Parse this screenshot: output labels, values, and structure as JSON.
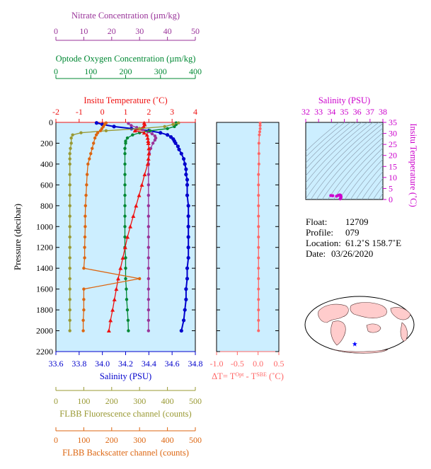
{
  "colors": {
    "nitrate": "#993399",
    "oxygen": "#008833",
    "temperature": "#ee1111",
    "salinity": "#0000cc",
    "fluorescence": "#999933",
    "backscatter": "#dd6611",
    "delta_t": "#ff6666",
    "ts": "#cc00cc",
    "panel_bg": "#cceeff"
  },
  "chart_data": [
    {
      "type": "line",
      "panel": "profiles",
      "ylabel": "Pressure (decibar)",
      "ylim": [
        2200,
        0
      ],
      "yticks": [
        "0",
        "200",
        "400",
        "600",
        "800",
        "1000",
        "1200",
        "1400",
        "1600",
        "1800",
        "2000",
        "2200"
      ],
      "axes": {
        "nitrate": {
          "label": "Nitrate Concentration (µm/kg)",
          "range": [
            0,
            50
          ],
          "ticks": [
            "0",
            "10",
            "20",
            "30",
            "40",
            "50"
          ]
        },
        "oxygen": {
          "label": "Optode Oxygen Concentration (µm/kg)",
          "range": [
            0,
            400
          ],
          "ticks": [
            "0",
            "100",
            "200",
            "300",
            "400"
          ]
        },
        "temperature": {
          "label": "Insitu Temperature (˚C)",
          "range": [
            -2,
            4
          ],
          "ticks": [
            "-2",
            "-1",
            "0",
            "1",
            "2",
            "3",
            "4"
          ]
        },
        "salinity": {
          "label": "Salinity (PSU)",
          "range": [
            33.6,
            34.8
          ],
          "ticks": [
            "33.6",
            "33.8",
            "34.0",
            "34.2",
            "34.4",
            "34.6",
            "34.8"
          ]
        },
        "fluorescence": {
          "label": "FLBB Fluorescence channel (counts)",
          "range": [
            0,
            500
          ],
          "ticks": [
            "0",
            "100",
            "200",
            "300",
            "400",
            "500"
          ]
        },
        "backscatter": {
          "label": "FLBB Backscatter channel (counts)",
          "range": [
            0,
            500
          ],
          "ticks": [
            "0",
            "100",
            "200",
            "300",
            "400",
            "500"
          ]
        }
      },
      "series": [
        {
          "key": "salinity",
          "marker": "circle",
          "pressure": [
            5,
            20,
            40,
            60,
            80,
            100,
            120,
            140,
            160,
            180,
            200,
            230,
            260,
            300,
            350,
            400,
            450,
            500,
            550,
            600,
            700,
            800,
            900,
            1000,
            1100,
            1200,
            1300,
            1400,
            1500,
            1600,
            1700,
            1800,
            1900,
            2000
          ],
          "values": [
            33.95,
            34.0,
            34.1,
            34.25,
            34.4,
            34.5,
            34.56,
            34.59,
            34.61,
            34.62,
            34.63,
            34.65,
            34.66,
            34.68,
            34.7,
            34.71,
            34.72,
            34.72,
            34.73,
            34.73,
            34.73,
            34.74,
            34.74,
            34.74,
            34.74,
            34.74,
            34.74,
            34.73,
            34.73,
            34.72,
            34.72,
            34.71,
            34.7,
            34.68
          ]
        },
        {
          "key": "nitrate",
          "marker": "circle",
          "pressure": [
            10,
            30,
            50,
            70,
            90,
            110,
            130,
            150,
            170,
            200,
            250,
            300,
            400,
            500,
            600,
            700,
            800,
            900,
            1000,
            1100,
            1200,
            1300,
            1400,
            1500,
            1600,
            1700,
            1800,
            1900,
            2000
          ],
          "values": [
            26,
            27,
            29,
            31,
            33,
            34.5,
            35.5,
            35.8,
            35.5,
            34.8,
            34.0,
            33.5,
            33.2,
            33.2,
            33.2,
            33.2,
            33.2,
            33.2,
            33.2,
            33.2,
            33.2,
            33.2,
            33.2,
            33.2,
            33.2,
            33.2,
            33.2,
            33.2,
            33.2
          ]
        },
        {
          "key": "oxygen",
          "marker": "circle",
          "pressure": [
            5,
            20,
            40,
            60,
            80,
            100,
            120,
            150,
            180,
            200,
            250,
            300,
            400,
            500,
            600,
            700,
            800,
            900,
            1000,
            1100,
            1200,
            1300,
            1400,
            1500,
            1600,
            1700,
            1800,
            1900,
            2000
          ],
          "values": [
            345,
            345,
            340,
            320,
            270,
            240,
            220,
            205,
            200,
            200,
            198,
            198,
            198,
            198,
            198,
            198,
            198,
            198,
            198,
            198,
            198,
            200,
            200,
            200,
            202,
            203,
            205,
            207,
            208
          ]
        },
        {
          "key": "temperature",
          "marker": "triangle",
          "pressure": [
            5,
            20,
            40,
            60,
            80,
            100,
            120,
            150,
            180,
            200,
            250,
            300,
            350,
            400,
            500,
            600,
            700,
            800,
            900,
            1000,
            1100,
            1200,
            1300,
            1400,
            1500,
            1600,
            1700,
            1800,
            1900,
            2000
          ],
          "values": [
            1.8,
            1.82,
            1.78,
            1.6,
            1.4,
            1.8,
            1.92,
            1.95,
            1.97,
            1.98,
            2.0,
            2.0,
            1.98,
            1.95,
            1.82,
            1.7,
            1.58,
            1.45,
            1.33,
            1.2,
            1.08,
            0.98,
            0.88,
            0.78,
            0.68,
            0.6,
            0.52,
            0.44,
            0.35,
            0.28
          ]
        },
        {
          "key": "fluorescence",
          "marker": "circle",
          "pressure": [
            5,
            20,
            40,
            60,
            80,
            100,
            120,
            150,
            200,
            250,
            300,
            350,
            400,
            500,
            600,
            700,
            800,
            900,
            1000,
            1100,
            1200,
            1300,
            1400,
            1500,
            1600,
            1700,
            1800,
            1900,
            2000
          ],
          "values": [
            440,
            420,
            390,
            300,
            180,
            90,
            60,
            55,
            55,
            52,
            50,
            50,
            50,
            50,
            50,
            50,
            50,
            50,
            50,
            50,
            50,
            50,
            50,
            50,
            50,
            50,
            50,
            50,
            50
          ]
        },
        {
          "key": "backscatter",
          "marker": "circle",
          "pressure": [
            5,
            20,
            40,
            60,
            80,
            100,
            120,
            150,
            200,
            250,
            300,
            350,
            400,
            500,
            600,
            700,
            800,
            900,
            1000,
            1100,
            1200,
            1300,
            1400,
            1500,
            1600,
            1700,
            1800,
            1900,
            2000
          ],
          "values": [
            180,
            175,
            170,
            165,
            160,
            150,
            145,
            140,
            135,
            130,
            125,
            120,
            115,
            112,
            110,
            108,
            106,
            105,
            105,
            104,
            103,
            103,
            100,
            300,
            100,
            100,
            100,
            98,
            98
          ]
        }
      ]
    },
    {
      "type": "line",
      "panel": "delta_t",
      "xlabel": "ΔT= T",
      "xlabel_sup1": "Opt",
      "xlabel_mid": " - T",
      "xlabel_sup2": "SBE",
      "xlabel_end": " (˚C)",
      "xlim": [
        -1.0,
        0.5
      ],
      "xticks": [
        "-1.0",
        "-0.5",
        "0.0",
        "0.5"
      ],
      "ylim": [
        2200,
        0
      ],
      "series": [
        {
          "key": "delta_t",
          "marker": "circle",
          "pressure": [
            5,
            30,
            60,
            90,
            120,
            200,
            300,
            400,
            500,
            600,
            700,
            800,
            900,
            1000,
            1100,
            1200,
            1300,
            1400,
            1500,
            1600,
            1700,
            1800,
            1900,
            2000
          ],
          "values": [
            0.05,
            0.05,
            0.05,
            0.04,
            0.03,
            0.02,
            0.02,
            0.02,
            0.01,
            0.01,
            0.01,
            0.01,
            0.01,
            0.01,
            0.01,
            0.01,
            0.01,
            0.01,
            0.01,
            0.01,
            0.01,
            0.01,
            0.01,
            0.01
          ]
        }
      ]
    },
    {
      "type": "scatter",
      "panel": "ts",
      "xlabel": "Salinity (PSU)",
      "ylabel": "Insitu Temperature (˚C)",
      "xlim": [
        32,
        38
      ],
      "ylim": [
        0,
        35
      ],
      "xticks": [
        "32",
        "33",
        "34",
        "35",
        "36",
        "37",
        "38"
      ],
      "yticks": [
        "0",
        "5",
        "10",
        "15",
        "20",
        "25",
        "30",
        "35"
      ],
      "points": {
        "salinity": [
          33.95,
          34.1,
          34.4,
          34.55,
          34.62,
          34.66,
          34.7,
          34.72,
          34.74,
          34.74,
          34.73,
          34.7,
          34.68
        ],
        "temperature": [
          1.8,
          1.7,
          1.5,
          1.9,
          1.98,
          2.0,
          1.95,
          1.7,
          1.4,
          1.1,
          0.8,
          0.5,
          0.3
        ]
      }
    }
  ],
  "info": {
    "float_label": "Float:",
    "float_value": "12709",
    "profile_label": "Profile:",
    "profile_value": "079",
    "location_label": "Location:",
    "location_value": "61.2˚S  158.7˚E",
    "date_label": "Date:",
    "date_value": "03/26/2020"
  },
  "map": {
    "land_color": "#ffcccc",
    "ocean_color": "#ffffff",
    "marker_color": "#0000ff",
    "lat": -61.2,
    "lon": 158.7
  }
}
